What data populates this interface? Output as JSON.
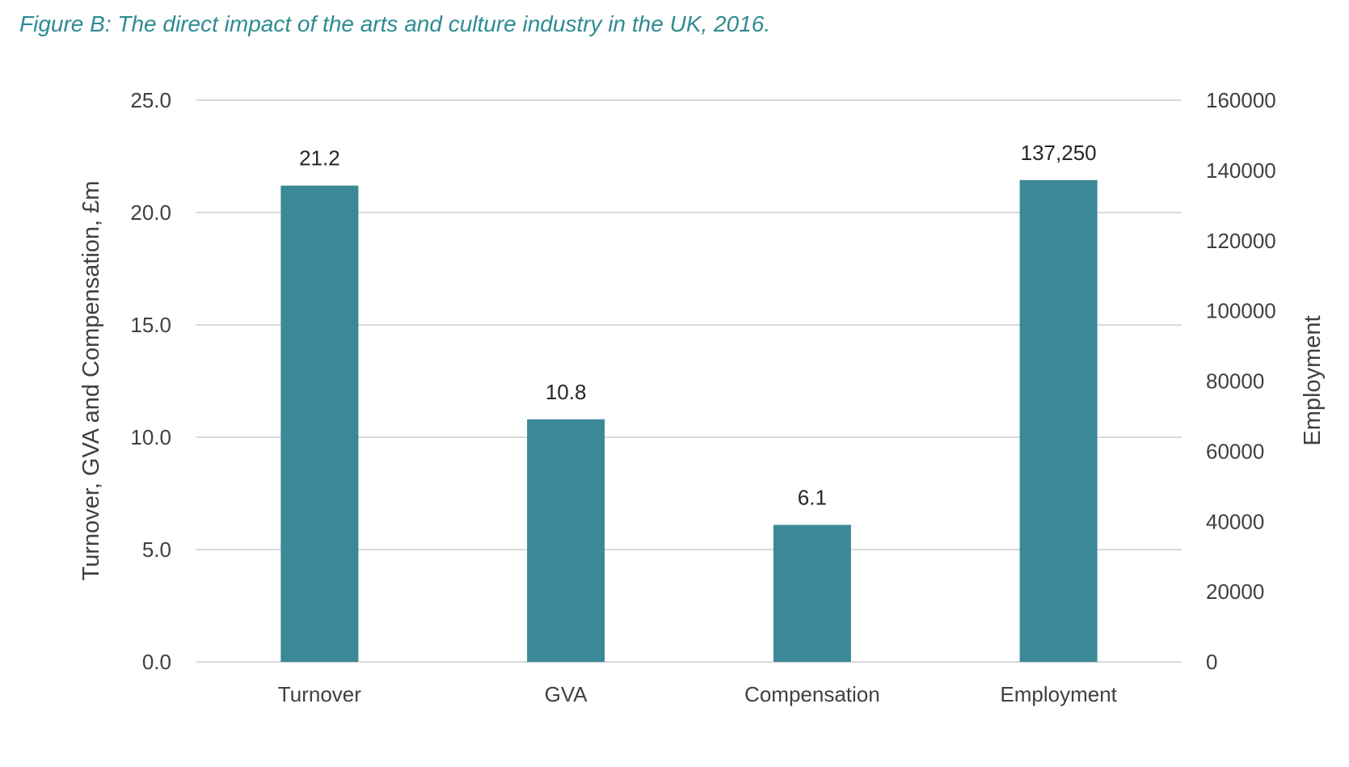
{
  "chart_data": {
    "type": "bar",
    "title": "Figure B: The direct impact of the arts and culture industry in the UK, 2016.",
    "categories": [
      "Turnover",
      "GVA",
      "Compensation",
      "Employment"
    ],
    "series": [
      {
        "axis": "left",
        "values": [
          21.2,
          10.8,
          6.1,
          null
        ],
        "labels": [
          "21.2",
          "10.8",
          "6.1",
          null
        ]
      },
      {
        "axis": "right",
        "values": [
          null,
          null,
          null,
          137250
        ],
        "labels": [
          null,
          null,
          null,
          "137,250"
        ]
      }
    ],
    "ylabel": "Turnover, GVA and Compensation, £m",
    "ylim": [
      0,
      25
    ],
    "yticks": [
      "0.0",
      "5.0",
      "10.0",
      "15.0",
      "20.0",
      "25.0"
    ],
    "y2label": "Employment",
    "y2lim": [
      0,
      160000
    ],
    "y2ticks": [
      "0",
      "20000",
      "40000",
      "60000",
      "80000",
      "100000",
      "120000",
      "140000",
      "160000"
    ],
    "grid": true,
    "legend": "none",
    "colors": {
      "bar": "#3B8897",
      "title": "#2E8B92",
      "grid": "#d9d9d9",
      "text": "#404040"
    }
  }
}
